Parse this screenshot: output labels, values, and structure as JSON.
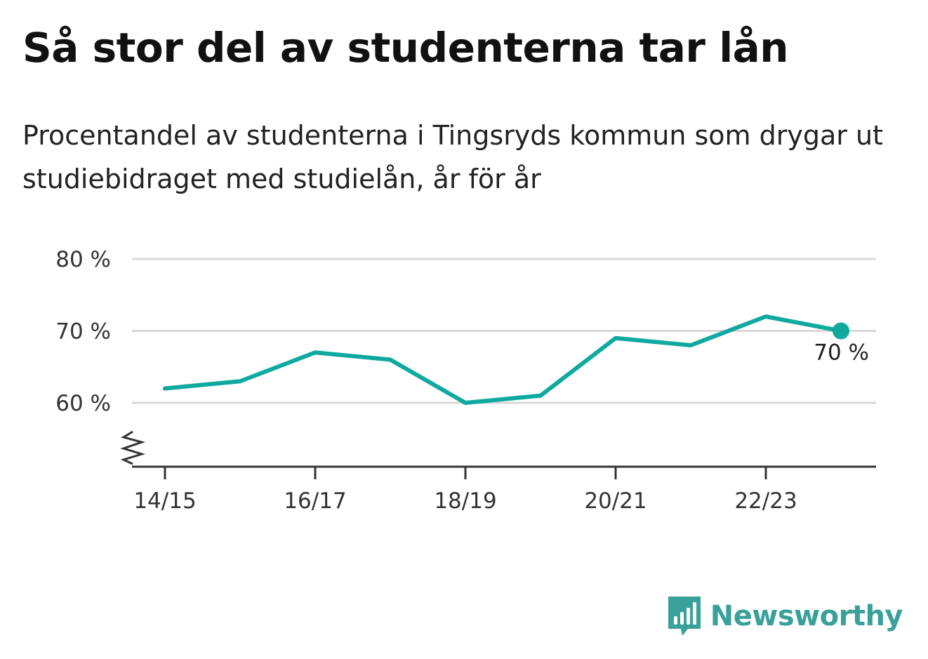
{
  "title": "Så stor del av studenterna tar lån",
  "subtitle": "Procentandel av studenterna i Tingsryds kommun som drygar ut studiebidraget med studielån, år för år",
  "brand": {
    "name": "Newsworthy",
    "icon": "chat-bar-chart-icon",
    "color": "#3aa09a"
  },
  "colors": {
    "line": "#0fa99f",
    "grid": "#d9d9d9",
    "axis": "#333333"
  },
  "chart_data": {
    "type": "line",
    "x": [
      "14/15",
      "15/16",
      "16/17",
      "17/18",
      "18/19",
      "19/20",
      "20/21",
      "21/22",
      "22/23",
      "23/24"
    ],
    "series": [
      {
        "values": [
          62,
          63,
          67,
          66,
          60,
          61,
          69,
          68,
          72,
          70
        ]
      }
    ],
    "x_tick_labels": [
      "14/15",
      "16/17",
      "18/19",
      "20/21",
      "22/23"
    ],
    "y_ticks": [
      60,
      70,
      80
    ],
    "y_tick_labels": [
      "60 %",
      "70 %",
      "80 %"
    ],
    "ylim": [
      51,
      80
    ],
    "y_axis_break": true,
    "grid": true,
    "end_label": "70 %",
    "xlabel": "",
    "ylabel": ""
  }
}
